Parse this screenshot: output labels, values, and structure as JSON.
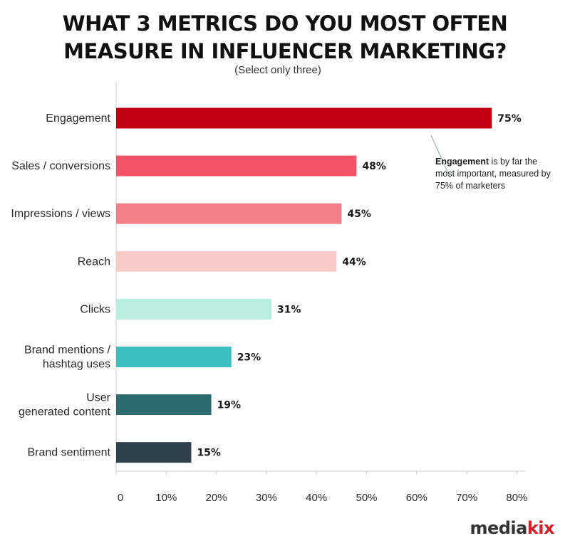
{
  "title_line1": "WHAT 3 METRICS DO YOU MOST OFTEN",
  "title_line2": "MEASURE IN INFLUENCER MARKETING?",
  "subtitle": "(Select only three)",
  "annotation": {
    "bold": "Engagement",
    "text": " is by far the most important, measured by 75% of marketers"
  },
  "logo": {
    "part1": "media",
    "part2": "kix"
  },
  "chart_data": {
    "type": "bar",
    "orientation": "horizontal",
    "title": "WHAT 3 METRICS DO YOU MOST OFTEN MEASURE IN INFLUENCER MARKETING?",
    "subtitle": "(Select only three)",
    "categories": [
      [
        "Engagement"
      ],
      [
        "Sales / conversions"
      ],
      [
        "Impressions / views"
      ],
      [
        "Reach"
      ],
      [
        "Clicks"
      ],
      [
        "Brand mentions /",
        "hashtag uses"
      ],
      [
        "User",
        "generated content"
      ],
      [
        "Brand sentiment"
      ]
    ],
    "values": [
      75,
      48,
      45,
      44,
      31,
      23,
      19,
      15
    ],
    "value_labels": [
      "75%",
      "48%",
      "45%",
      "44%",
      "31%",
      "23%",
      "19%",
      "15%"
    ],
    "colors": [
      "#c0000f",
      "#f25366",
      "#f47f8b",
      "#f9cbc8",
      "#b8ede0",
      "#3cbfbf",
      "#2c6b6e",
      "#2e3f4c"
    ],
    "xlim": [
      0,
      80
    ],
    "xticks": [
      0,
      10,
      20,
      30,
      40,
      50,
      60,
      70,
      80
    ],
    "xtick_labels": [
      "0",
      "10%",
      "20%",
      "30%",
      "40%",
      "50%",
      "60%",
      "70%",
      "80%"
    ],
    "grid": false
  }
}
